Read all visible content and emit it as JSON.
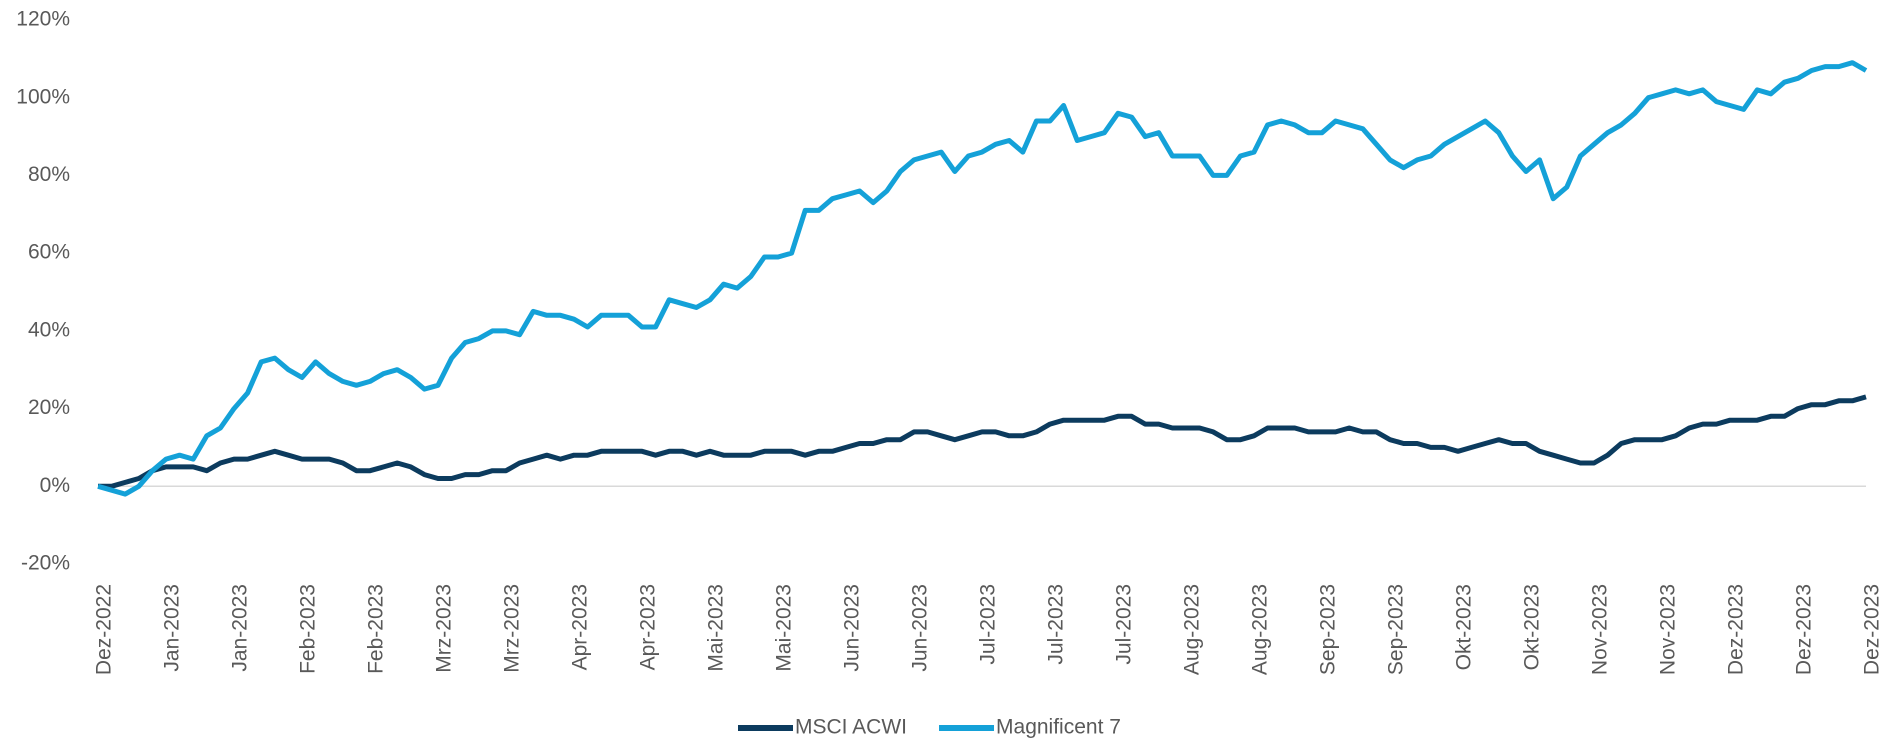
{
  "chart_data": {
    "type": "line",
    "categories": [
      "Dez-2022",
      null,
      null,
      null,
      null,
      "Jan-2023",
      null,
      null,
      null,
      null,
      "Jan-2023",
      null,
      null,
      null,
      null,
      "Feb-2023",
      null,
      null,
      null,
      null,
      "Feb-2023",
      null,
      null,
      null,
      null,
      "Mrz-2023",
      null,
      null,
      null,
      null,
      "Mrz-2023",
      null,
      null,
      null,
      null,
      "Apr-2023",
      null,
      null,
      null,
      null,
      "Apr-2023",
      null,
      null,
      null,
      null,
      "Mai-2023",
      null,
      null,
      null,
      null,
      "Mai-2023",
      null,
      null,
      null,
      null,
      "Jun-2023",
      null,
      null,
      null,
      null,
      "Jun-2023",
      null,
      null,
      null,
      null,
      "Jul-2023",
      null,
      null,
      null,
      null,
      "Jul-2023",
      null,
      null,
      null,
      null,
      "Jul-2023",
      null,
      null,
      null,
      null,
      "Aug-2023",
      null,
      null,
      null,
      null,
      "Aug-2023",
      null,
      null,
      null,
      null,
      "Sep-2023",
      null,
      null,
      null,
      null,
      "Sep-2023",
      null,
      null,
      null,
      null,
      "Okt-2023",
      null,
      null,
      null,
      null,
      "Okt-2023",
      null,
      null,
      null,
      null,
      "Nov-2023",
      null,
      null,
      null,
      null,
      "Nov-2023",
      null,
      null,
      null,
      null,
      "Dez-2023",
      null,
      null,
      null,
      null,
      "Dez-2023",
      null,
      null,
      null,
      null,
      "Dez-2023"
    ],
    "series": [
      {
        "name": "MSCI ACWI",
        "color": "#0c3b5e",
        "values": [
          0,
          0,
          1,
          2,
          4,
          5,
          5,
          5,
          4,
          6,
          7,
          7,
          8,
          9,
          8,
          7,
          7,
          7,
          6,
          4,
          4,
          5,
          6,
          5,
          3,
          2,
          2,
          3,
          3,
          4,
          4,
          6,
          7,
          8,
          7,
          8,
          8,
          9,
          9,
          9,
          9,
          8,
          9,
          9,
          8,
          9,
          8,
          8,
          8,
          9,
          9,
          9,
          8,
          9,
          9,
          10,
          11,
          11,
          12,
          12,
          14,
          14,
          13,
          12,
          13,
          14,
          14,
          13,
          13,
          14,
          16,
          17,
          17,
          17,
          17,
          18,
          18,
          16,
          16,
          15,
          15,
          15,
          14,
          12,
          12,
          13,
          15,
          15,
          15,
          14,
          14,
          14,
          15,
          14,
          14,
          12,
          11,
          11,
          10,
          10,
          9,
          10,
          11,
          12,
          11,
          11,
          9,
          8,
          7,
          6,
          6,
          8,
          11,
          12,
          12,
          12,
          13,
          15,
          16,
          16,
          17,
          17,
          17,
          18,
          18,
          20,
          21,
          21,
          22,
          22,
          23
        ]
      },
      {
        "name": "Magnificent 7",
        "color": "#14a1d8",
        "values": [
          0,
          -1,
          -2,
          0,
          4,
          7,
          8,
          7,
          13,
          15,
          20,
          24,
          32,
          33,
          30,
          28,
          32,
          29,
          27,
          26,
          27,
          29,
          30,
          28,
          25,
          26,
          33,
          37,
          38,
          40,
          40,
          39,
          45,
          44,
          44,
          43,
          41,
          44,
          44,
          44,
          41,
          41,
          48,
          47,
          46,
          48,
          52,
          51,
          54,
          59,
          59,
          60,
          71,
          71,
          74,
          75,
          76,
          73,
          76,
          81,
          84,
          85,
          86,
          81,
          85,
          86,
          88,
          89,
          86,
          94,
          94,
          98,
          89,
          90,
          91,
          96,
          95,
          90,
          91,
          85,
          85,
          85,
          80,
          80,
          85,
          86,
          93,
          94,
          93,
          91,
          91,
          94,
          93,
          92,
          88,
          84,
          82,
          84,
          85,
          88,
          90,
          92,
          94,
          91,
          85,
          81,
          84,
          74,
          77,
          85,
          88,
          91,
          93,
          96,
          100,
          101,
          102,
          101,
          102,
          99,
          98,
          97,
          102,
          101,
          104,
          105,
          107,
          108,
          108,
          109,
          107
        ]
      }
    ],
    "ylim": [
      -20,
      120
    ],
    "yticks": [
      {
        "value": -20,
        "label": "-20%"
      },
      {
        "value": 0,
        "label": "0%"
      },
      {
        "value": 20,
        "label": "20%"
      },
      {
        "value": 40,
        "label": "40%"
      },
      {
        "value": 60,
        "label": "60%"
      },
      {
        "value": 80,
        "label": "80%"
      },
      {
        "value": 100,
        "label": "100%"
      },
      {
        "value": 120,
        "label": "120%"
      }
    ],
    "legend": "bottom"
  }
}
